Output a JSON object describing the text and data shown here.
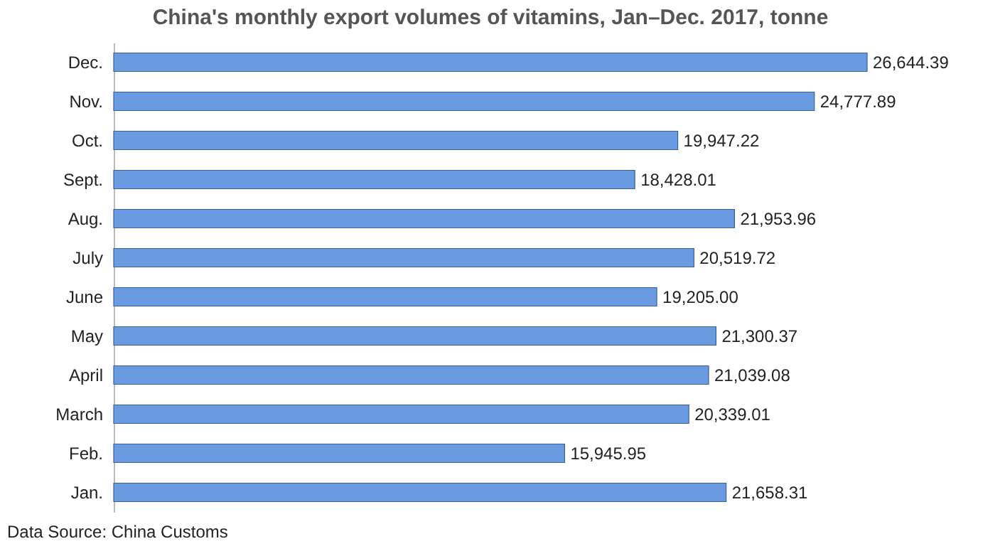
{
  "chart_data": {
    "type": "bar",
    "orientation": "horizontal",
    "title": "China's monthly export volumes of vitamins, Jan–Dec. 2017, tonne",
    "categories": [
      "Dec.",
      "Nov.",
      "Oct.",
      "Sept.",
      "Aug.",
      "July",
      "June",
      "May",
      "April",
      "March",
      "Feb.",
      "Jan."
    ],
    "values": [
      26644.39,
      24777.89,
      19947.22,
      18428.01,
      21953.96,
      20519.72,
      19205.0,
      21300.37,
      21039.08,
      20339.01,
      15945.95,
      21658.31
    ],
    "value_labels": [
      "26,644.39",
      "24,777.89",
      "19,947.22",
      "18,428.01",
      "21,953.96",
      "20,519.72",
      "19,205.00",
      "21,300.37",
      "21,039.08",
      "20,339.01",
      "15,945.95",
      "21,658.31"
    ],
    "color": "#6a9ae0",
    "grid": false,
    "annotations": [
      "Data Source: China Customs"
    ]
  }
}
